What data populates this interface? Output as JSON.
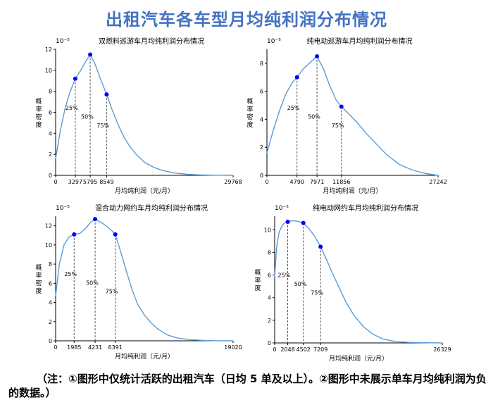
{
  "title": "出租汽车各车型月均纯利润分布情况",
  "note": "（注：①图形中仅统计活跃的出租汽车（日均 5 单及以上）。②图形中未展示单车月均纯利润为负的数据。）",
  "chart_data": [
    {
      "type": "line",
      "title": "双燃料巡游车月均纯利润分布情况",
      "exponent_label": "10⁻⁵",
      "xlabel": "月均纯利润（元/月）",
      "ylabel": [
        "概",
        "率",
        "密",
        "度"
      ],
      "xlim": [
        0,
        29768
      ],
      "ylim": [
        0,
        12
      ],
      "yticks": [
        0,
        2,
        4,
        6,
        8,
        10,
        12
      ],
      "xticks": [
        0,
        3297,
        5795,
        8549,
        29768
      ],
      "x": [
        0,
        800,
        1600,
        2400,
        3297,
        4200,
        5000,
        5795,
        6600,
        7500,
        8549,
        9500,
        10500,
        11500,
        12500,
        13500,
        15000,
        16500,
        18000,
        20000,
        22000,
        24000,
        26000,
        29768
      ],
      "y": [
        1.6,
        4.3,
        6.4,
        7.9,
        9.2,
        10.0,
        10.8,
        11.5,
        10.6,
        9.2,
        7.7,
        6.2,
        4.8,
        3.6,
        2.7,
        2.0,
        1.2,
        0.75,
        0.45,
        0.22,
        0.1,
        0.05,
        0.02,
        0.0
      ],
      "quartiles": [
        {
          "label": "25%",
          "x": 3297,
          "y": 9.2
        },
        {
          "label": "50%",
          "x": 5795,
          "y": 11.5
        },
        {
          "label": "75%",
          "x": 8549,
          "y": 7.7
        }
      ]
    },
    {
      "type": "line",
      "title": "纯电动巡游车月均纯利润分布情况",
      "exponent_label": "10⁻⁵",
      "xlabel": "月均纯利润（元/月）",
      "ylabel": [
        "概",
        "率",
        "密",
        "度"
      ],
      "xlim": [
        0,
        27242
      ],
      "ylim": [
        0,
        9
      ],
      "yticks": [
        0,
        2,
        4,
        6,
        8
      ],
      "xticks": [
        0,
        4790,
        7971,
        11856,
        27242
      ],
      "x": [
        0,
        1000,
        2000,
        3000,
        4000,
        4790,
        5800,
        7000,
        7971,
        9000,
        10000,
        11000,
        11856,
        13000,
        14500,
        16000,
        17500,
        19000,
        21000,
        23000,
        25000,
        27242
      ],
      "y": [
        1.6,
        3.2,
        4.6,
        5.8,
        6.6,
        7.0,
        7.6,
        8.1,
        8.5,
        7.6,
        6.4,
        5.4,
        4.9,
        4.4,
        3.7,
        2.9,
        2.2,
        1.5,
        0.8,
        0.4,
        0.15,
        0.0
      ],
      "quartiles": [
        {
          "label": "25%",
          "x": 4790,
          "y": 7.0
        },
        {
          "label": "50%",
          "x": 7971,
          "y": 8.5
        },
        {
          "label": "75%",
          "x": 11856,
          "y": 4.9
        }
      ]
    },
    {
      "type": "line",
      "title": "混合动力网约车月均纯利润分布情况",
      "exponent_label": "10⁻⁵",
      "xlabel": "月均纯利润（元/月）",
      "ylabel": [
        "概",
        "率",
        "密",
        "度"
      ],
      "xlim": [
        0,
        19020
      ],
      "ylim": [
        0,
        13
      ],
      "yticks": [
        0,
        2,
        4,
        6,
        8,
        10,
        12
      ],
      "xticks": [
        0,
        1985,
        4231,
        6391,
        19020
      ],
      "x": [
        0,
        400,
        900,
        1400,
        1985,
        2600,
        3200,
        3700,
        4231,
        4800,
        5400,
        6000,
        6391,
        7000,
        7600,
        8200,
        8800,
        9500,
        10200,
        11000,
        12000,
        13000,
        14500,
        16000,
        17500,
        19020
      ],
      "y": [
        4.7,
        8.0,
        10.0,
        10.8,
        11.1,
        11.2,
        11.7,
        12.3,
        12.7,
        12.4,
        12.0,
        11.5,
        11.1,
        9.2,
        7.2,
        5.3,
        3.8,
        2.7,
        1.9,
        1.2,
        0.6,
        0.3,
        0.1,
        0.04,
        0.01,
        0.0
      ],
      "quartiles": [
        {
          "label": "25%",
          "x": 1985,
          "y": 11.1
        },
        {
          "label": "50%",
          "x": 4231,
          "y": 12.7
        },
        {
          "label": "75%",
          "x": 6391,
          "y": 11.1
        }
      ]
    },
    {
      "type": "line",
      "title": "纯电动网约车月均纯利润分布情况",
      "exponent_label": "10⁻⁵",
      "xlabel": "月均纯利润（元/月）",
      "ylabel": [
        "概",
        "率",
        "度"
      ],
      "xlim": [
        0,
        26329
      ],
      "ylim": [
        0,
        11.2
      ],
      "yticks": [
        0,
        2,
        4,
        6,
        8,
        10
      ],
      "xticks": [
        0,
        2048,
        4502,
        7209,
        26329
      ],
      "x": [
        0,
        300,
        700,
        1200,
        1600,
        2048,
        2800,
        3600,
        4502,
        5400,
        6300,
        7209,
        8200,
        9200,
        10200,
        11200,
        12500,
        14000,
        15500,
        17000,
        19000,
        21000,
        23500,
        26329
      ],
      "y": [
        5.8,
        8.4,
        9.8,
        10.4,
        10.6,
        10.7,
        10.8,
        10.75,
        10.6,
        10.1,
        9.4,
        8.5,
        7.3,
        6.0,
        4.8,
        3.6,
        2.4,
        1.4,
        0.75,
        0.35,
        0.12,
        0.05,
        0.02,
        0.0
      ],
      "quartiles": [
        {
          "label": "25%",
          "x": 2048,
          "y": 10.7
        },
        {
          "label": "50%",
          "x": 4502,
          "y": 10.6
        },
        {
          "label": "75%",
          "x": 7209,
          "y": 8.5
        }
      ]
    }
  ]
}
